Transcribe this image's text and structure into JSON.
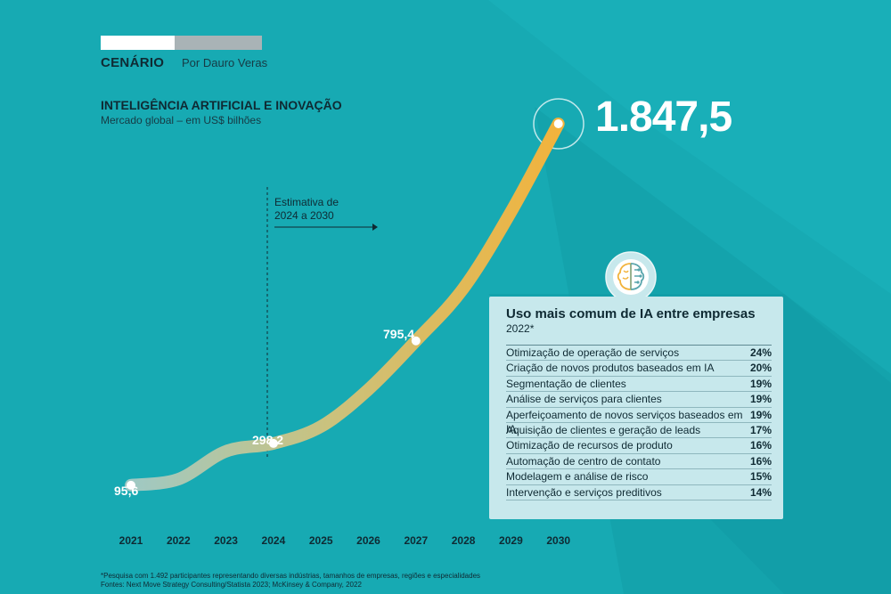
{
  "header": {
    "section": "CENÁRIO",
    "byline": "Por Dauro Veras"
  },
  "title": "INTELIGÊNCIA ARTIFICIAL E INOVAÇÃO",
  "subtitle": "Mercado global – em US$ bilhões",
  "estimate_note": [
    "Estimativa de",
    "2024 a 2030"
  ],
  "highlight_value": "1.847,5",
  "point_labels": {
    "p2021": "95,6",
    "p2024": "298,2",
    "p2027": "795,4"
  },
  "colors": {
    "background": "#17aab3",
    "line_start": "#9fc9c4",
    "line_end": "#f2b33c",
    "panel": "#c7e8ec",
    "text_dark": "#0f2a33"
  },
  "chart_data": [
    {
      "type": "line",
      "title": "INTELIGÊNCIA ARTIFICIAL E INOVAÇÃO",
      "subtitle": "Mercado global – em US$ bilhões",
      "x": [
        "2021",
        "2022",
        "2023",
        "2024",
        "2025",
        "2026",
        "2027",
        "2028",
        "2029",
        "2030"
      ],
      "values": [
        95.6,
        125,
        260,
        298.2,
        380,
        560,
        795.4,
        1050,
        1420,
        1847.5
      ],
      "labeled_points": {
        "2021": "95,6",
        "2024": "298,2",
        "2027": "795,4",
        "2030": "1.847,5"
      },
      "projection_from": "2024",
      "ylim": [
        0,
        1900
      ],
      "grid": false,
      "icon": "brain-circuit-icon"
    },
    {
      "type": "table",
      "title": "Uso mais comum de IA entre empresas",
      "subtitle": "2022*",
      "rows": [
        {
          "label": "Otimização de operação de serviços",
          "value": "24%"
        },
        {
          "label": "Criação de novos produtos baseados em IA",
          "value": "20%"
        },
        {
          "label": "Segmentação de clientes",
          "value": "19%"
        },
        {
          "label": "Análise de serviços para clientes",
          "value": "19%"
        },
        {
          "label": "Aperfeiçoamento de novos serviços baseados em IA",
          "value": "19%"
        },
        {
          "label": "Aquisição de clientes e geração de leads",
          "value": "17%"
        },
        {
          "label": "Otimização de recursos de produto",
          "value": "16%"
        },
        {
          "label": "Automação de centro de contato",
          "value": "16%"
        },
        {
          "label": "Modelagem e análise de risco",
          "value": "15%"
        },
        {
          "label": "Intervenção e serviços preditivos",
          "value": "14%"
        }
      ]
    }
  ],
  "footnote": [
    "*Pesquisa com 1.492 participantes representando diversas indústrias, tamanhos de empresas, regiões e especialidades",
    "Fontes: Next Move Strategy Consulting/Statista 2023; McKinsey & Company, 2022"
  ]
}
